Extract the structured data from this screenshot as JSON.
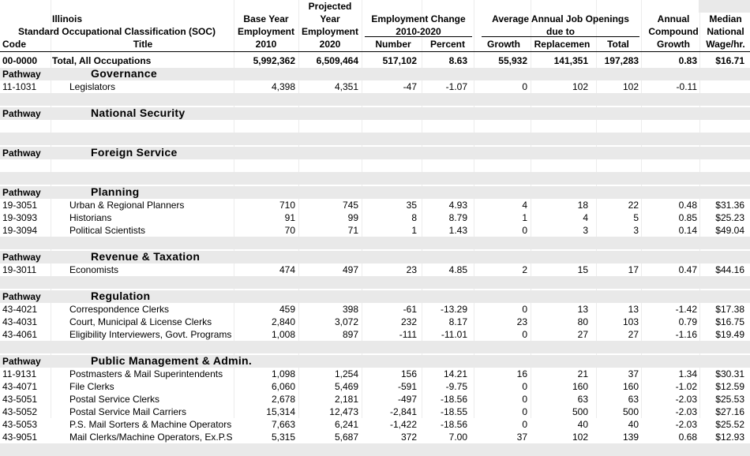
{
  "header": {
    "state": "Illinois",
    "soc_title": "Standard Occupational Classification (SOC)",
    "code": "Code",
    "title": "Title",
    "base_year": "Base Year",
    "employment": "Employment",
    "base_year_value": "2010",
    "projected": "Projected",
    "year": "Year",
    "projected_employment": "Employment",
    "projected_year_value": "2020",
    "emp_change": "Employment Change",
    "emp_change_range": "2010-2020",
    "number": "Number",
    "percent": "Percent",
    "avg_openings": "Average Annual Job Openings",
    "due_to": "due to",
    "growth": "Growth",
    "replacement": "Replacemen",
    "total": "Total",
    "annual": "Annual",
    "compound": "Compound",
    "compound_growth": "Growth",
    "median": "Median",
    "national": "National",
    "wage": "Wage/hr."
  },
  "total_row": {
    "code": "00-0000",
    "title": "Total, All Occupations",
    "base": "5,992,362",
    "proj": "6,509,464",
    "num": "517,102",
    "pct": "8.63",
    "growth": "55,932",
    "repl": "141,351",
    "total": "197,283",
    "cagr": "0.83",
    "wage": "$16.71"
  },
  "pathways": [
    {
      "label": "Pathway",
      "name": "Governance",
      "rows": [
        {
          "code": "11-1031",
          "title": "Legislators",
          "base": "4,398",
          "proj": "4,351",
          "num": "-47",
          "pct": "-1.07",
          "growth": "0",
          "repl": "102",
          "total": "102",
          "cagr": "-0.11",
          "wage": ""
        }
      ]
    },
    {
      "label": "Pathway",
      "name": "National Security",
      "rows": []
    },
    {
      "label": "Pathway",
      "name": "Foreign Service",
      "rows": []
    },
    {
      "label": "Pathway",
      "name": "Planning",
      "rows": [
        {
          "code": "19-3051",
          "title": "Urban & Regional Planners",
          "base": "710",
          "proj": "745",
          "num": "35",
          "pct": "4.93",
          "growth": "4",
          "repl": "18",
          "total": "22",
          "cagr": "0.48",
          "wage": "$31.36"
        },
        {
          "code": "19-3093",
          "title": "Historians",
          "base": "91",
          "proj": "99",
          "num": "8",
          "pct": "8.79",
          "growth": "1",
          "repl": "4",
          "total": "5",
          "cagr": "0.85",
          "wage": "$25.23"
        },
        {
          "code": "19-3094",
          "title": "Political Scientists",
          "base": "70",
          "proj": "71",
          "num": "1",
          "pct": "1.43",
          "growth": "0",
          "repl": "3",
          "total": "3",
          "cagr": "0.14",
          "wage": "$49.04"
        }
      ]
    },
    {
      "label": "Pathway",
      "name": "Revenue & Taxation",
      "rows": [
        {
          "code": "19-3011",
          "title": "Economists",
          "base": "474",
          "proj": "497",
          "num": "23",
          "pct": "4.85",
          "growth": "2",
          "repl": "15",
          "total": "17",
          "cagr": "0.47",
          "wage": "$44.16"
        }
      ]
    },
    {
      "label": "Pathway",
      "name": "Regulation",
      "rows": [
        {
          "code": "43-4021",
          "title": "Correspondence Clerks",
          "base": "459",
          "proj": "398",
          "num": "-61",
          "pct": "-13.29",
          "growth": "0",
          "repl": "13",
          "total": "13",
          "cagr": "-1.42",
          "wage": "$17.38"
        },
        {
          "code": "43-4031",
          "title": "Court, Municipal & License Clerks",
          "base": "2,840",
          "proj": "3,072",
          "num": "232",
          "pct": "8.17",
          "growth": "23",
          "repl": "80",
          "total": "103",
          "cagr": "0.79",
          "wage": "$16.75"
        },
        {
          "code": "43-4061",
          "title": "Eligibility Interviewers, Govt. Programs",
          "base": "1,008",
          "proj": "897",
          "num": "-111",
          "pct": "-11.01",
          "growth": "0",
          "repl": "27",
          "total": "27",
          "cagr": "-1.16",
          "wage": "$19.49"
        }
      ]
    },
    {
      "label": "Pathway",
      "name": "Public Management & Admin.",
      "rows": [
        {
          "code": "11-9131",
          "title": "Postmasters & Mail Superintendents",
          "base": "1,098",
          "proj": "1,254",
          "num": "156",
          "pct": "14.21",
          "growth": "16",
          "repl": "21",
          "total": "37",
          "cagr": "1.34",
          "wage": "$30.31"
        },
        {
          "code": "43-4071",
          "title": "File Clerks",
          "base": "6,060",
          "proj": "5,469",
          "num": "-591",
          "pct": "-9.75",
          "growth": "0",
          "repl": "160",
          "total": "160",
          "cagr": "-1.02",
          "wage": "$12.59"
        },
        {
          "code": "43-5051",
          "title": "Postal Service Clerks",
          "base": "2,678",
          "proj": "2,181",
          "num": "-497",
          "pct": "-18.56",
          "growth": "0",
          "repl": "63",
          "total": "63",
          "cagr": "-2.03",
          "wage": "$25.53"
        },
        {
          "code": "43-5052",
          "title": "Postal Service Mail Carriers",
          "base": "15,314",
          "proj": "12,473",
          "num": "-2,841",
          "pct": "-18.55",
          "growth": "0",
          "repl": "500",
          "total": "500",
          "cagr": "-2.03",
          "wage": "$27.16"
        },
        {
          "code": "43-5053",
          "title": "P.S. Mail Sorters & Machine Operators",
          "base": "7,663",
          "proj": "6,241",
          "num": "-1,422",
          "pct": "-18.56",
          "growth": "0",
          "repl": "40",
          "total": "40",
          "cagr": "-2.03",
          "wage": "$25.52"
        },
        {
          "code": "43-9051",
          "title": "Mail Clerks/Machine Operators, Ex.P.S",
          "base": "5,315",
          "proj": "5,687",
          "num": "372",
          "pct": "7.00",
          "growth": "37",
          "repl": "102",
          "total": "139",
          "cagr": "0.68",
          "wage": "$12.93"
        }
      ]
    }
  ]
}
